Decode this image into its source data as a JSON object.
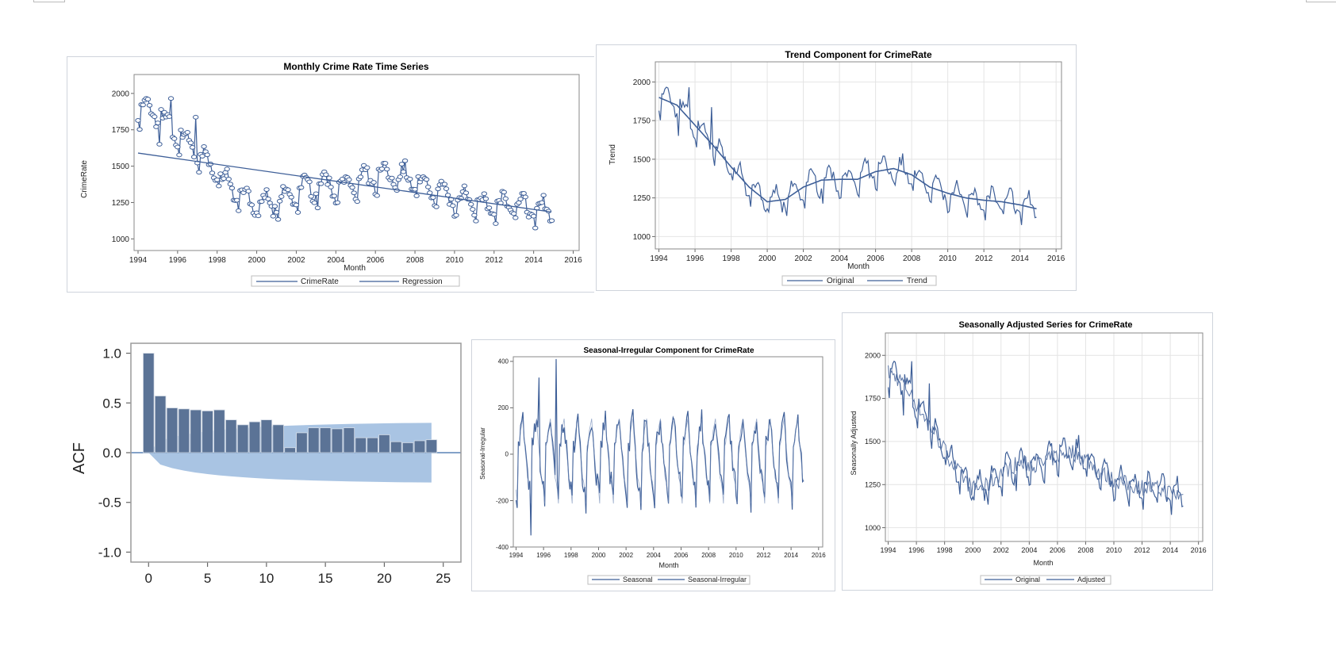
{
  "colors": {
    "line": "#3e5f98",
    "frame": "#8a8a8a",
    "grid": "#e4e4e4",
    "panel_border": "#cfd4dc",
    "acf_bar": "#5b7396",
    "acf_band": "#a9c4e3",
    "acf_axis": "#5a84b5",
    "acf_frame": "#9a9a9a"
  },
  "chart_data": [
    {
      "id": "crime",
      "type": "line",
      "title": "Monthly Crime Rate Time Series",
      "xlabel": "Month",
      "ylabel": "CrimeRate",
      "xlim": [
        1993.8,
        2016.3
      ],
      "ylim": [
        920,
        2130
      ],
      "xticks": [
        1994,
        1996,
        1998,
        2000,
        2002,
        2004,
        2006,
        2008,
        2010,
        2012,
        2014,
        2016
      ],
      "yticks": [
        1000,
        1250,
        1500,
        1750,
        2000
      ],
      "grid": false,
      "markers": true,
      "series_fn": "crimerate",
      "regression": {
        "x": [
          1994.0,
          2014.9
        ],
        "y": [
          1590,
          1185
        ]
      },
      "legend": [
        "CrimeRate",
        "Regression"
      ]
    },
    {
      "id": "trend",
      "type": "line",
      "title": "Trend Component for CrimeRate",
      "xlabel": "Month",
      "ylabel": "Trend",
      "xlim": [
        1993.8,
        2016.3
      ],
      "ylim": [
        920,
        2130
      ],
      "xticks": [
        1994,
        1996,
        1998,
        2000,
        2002,
        2004,
        2006,
        2008,
        2010,
        2012,
        2014,
        2016
      ],
      "yticks": [
        1000,
        1250,
        1500,
        1750,
        2000
      ],
      "grid": true,
      "series_fn": "crimerate",
      "trend": {
        "x": [
          1994.0,
          1995.0,
          1996.0,
          1997.0,
          1998.0,
          1999.0,
          2000.0,
          2001.0,
          2002.0,
          2003.0,
          2004.0,
          2005.0,
          2006.0,
          2007.0,
          2008.0,
          2009.0,
          2010.0,
          2011.0,
          2012.0,
          2013.0,
          2014.0,
          2014.9
        ],
        "y": [
          1900,
          1850,
          1720,
          1590,
          1450,
          1320,
          1225,
          1240,
          1320,
          1365,
          1370,
          1370,
          1420,
          1440,
          1400,
          1320,
          1280,
          1250,
          1235,
          1225,
          1205,
          1180
        ]
      },
      "legend": [
        "Original",
        "Trend"
      ]
    },
    {
      "id": "acf",
      "type": "bar",
      "xlabel": "",
      "ylabel": "ACF",
      "xlim": [
        -1.5,
        26.5
      ],
      "ylim": [
        -1.1,
        1.1
      ],
      "xticks": [
        0,
        5,
        10,
        15,
        20,
        25
      ],
      "yticks": [
        1.0,
        0.5,
        0.0,
        -0.5,
        -1.0
      ],
      "ytick_labels": [
        "1.0",
        "0.5",
        "0.0",
        "-0.5",
        "-1.0"
      ],
      "lags": [
        0,
        1,
        2,
        3,
        4,
        5,
        6,
        7,
        8,
        9,
        10,
        11,
        12,
        13,
        14,
        15,
        16,
        17,
        18,
        19,
        20,
        21,
        22,
        23,
        24
      ],
      "values": [
        1.0,
        0.57,
        0.45,
        0.44,
        0.43,
        0.42,
        0.43,
        0.33,
        0.28,
        0.31,
        0.33,
        0.28,
        0.05,
        0.2,
        0.25,
        0.25,
        0.24,
        0.25,
        0.15,
        0.15,
        0.18,
        0.11,
        0.1,
        0.12,
        0.13
      ],
      "confidence_band": [
        0.0,
        0.12,
        0.155,
        0.18,
        0.2,
        0.215,
        0.228,
        0.238,
        0.247,
        0.255,
        0.262,
        0.268,
        0.272,
        0.276,
        0.28,
        0.283,
        0.286,
        0.289,
        0.291,
        0.293,
        0.295,
        0.297,
        0.298,
        0.299,
        0.3
      ]
    },
    {
      "id": "seasonal",
      "type": "line",
      "title": "Seasonal-Irregular Component for CrimeRate",
      "xlabel": "Month",
      "ylabel": "Seasonal-Irregular",
      "xlim": [
        1993.8,
        2016.3
      ],
      "ylim": [
        -400,
        420
      ],
      "xticks": [
        1994,
        1996,
        1998,
        2000,
        2002,
        2004,
        2006,
        2008,
        2010,
        2012,
        2014,
        2016
      ],
      "yticks": [
        -400,
        -200,
        0,
        200,
        400
      ],
      "grid": false,
      "series_fn": "seasonal",
      "legend": [
        "Seasonal",
        "Seasonal-Irregular"
      ]
    },
    {
      "id": "adjusted",
      "type": "line",
      "title": "Seasonally Adjusted Series for CrimeRate",
      "xlabel": "Month",
      "ylabel": "Seasonally Adjusted",
      "xlim": [
        1993.8,
        2016.3
      ],
      "ylim": [
        920,
        2130
      ],
      "xticks": [
        1994,
        1996,
        1998,
        2000,
        2002,
        2004,
        2006,
        2008,
        2010,
        2012,
        2014,
        2016
      ],
      "yticks": [
        1000,
        1250,
        1500,
        1750,
        2000
      ],
      "grid": true,
      "series_fn": "crimerate",
      "adjusted_fn": "adjusted",
      "legend": [
        "Original",
        "Adjusted"
      ]
    }
  ]
}
